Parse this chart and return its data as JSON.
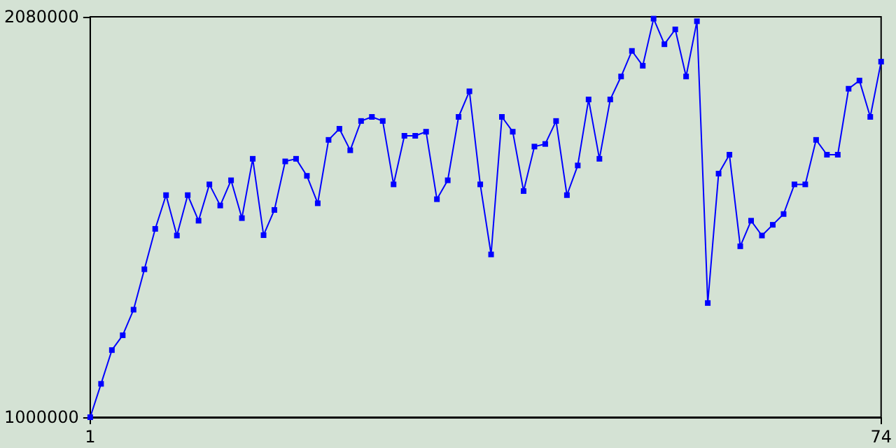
{
  "chart_data": {
    "type": "line",
    "x": [
      1,
      2,
      3,
      4,
      5,
      6,
      7,
      8,
      9,
      10,
      11,
      12,
      13,
      14,
      15,
      16,
      17,
      18,
      19,
      20,
      21,
      22,
      23,
      24,
      25,
      26,
      27,
      28,
      29,
      30,
      31,
      32,
      33,
      34,
      35,
      36,
      37,
      38,
      39,
      40,
      41,
      42,
      43,
      44,
      45,
      46,
      47,
      48,
      49,
      50,
      51,
      52,
      53,
      54,
      55,
      56,
      57,
      58,
      59,
      60,
      61,
      62,
      63,
      64,
      65,
      66,
      67,
      68,
      69,
      70,
      71,
      72,
      73,
      74
    ],
    "series": [
      {
        "color": "#0000ff",
        "values": [
          1000000,
          1090000,
          1181000,
          1221000,
          1290000,
          1399000,
          1508000,
          1599000,
          1490000,
          1599000,
          1530000,
          1628000,
          1571000,
          1639000,
          1537000,
          1697000,
          1491000,
          1559000,
          1690000,
          1697000,
          1651000,
          1577000,
          1748000,
          1778000,
          1720000,
          1799000,
          1810000,
          1799000,
          1628000,
          1759000,
          1759000,
          1770000,
          1588000,
          1639000,
          1810000,
          1879000,
          1628000,
          1439000,
          1810000,
          1770000,
          1610000,
          1730000,
          1737000,
          1799000,
          1599000,
          1679000,
          1857000,
          1697000,
          1857000,
          1919000,
          1988000,
          1948000,
          2075000,
          2006000,
          2046000,
          1919000,
          2068000,
          1308000,
          1657000,
          1708000,
          1461000,
          1530000,
          1490000,
          1519000,
          1548000,
          1628000,
          1628000,
          1748000,
          1708000,
          1708000,
          1886000,
          1908000,
          1810000,
          1959000
        ]
      }
    ],
    "xlim": [
      1,
      74
    ],
    "xticks": [
      1,
      74
    ],
    "ylim": [
      1000000,
      2080000
    ],
    "yticks": [
      1000000,
      2080000
    ],
    "grid": false,
    "marker": "square",
    "line_style": "solid"
  }
}
